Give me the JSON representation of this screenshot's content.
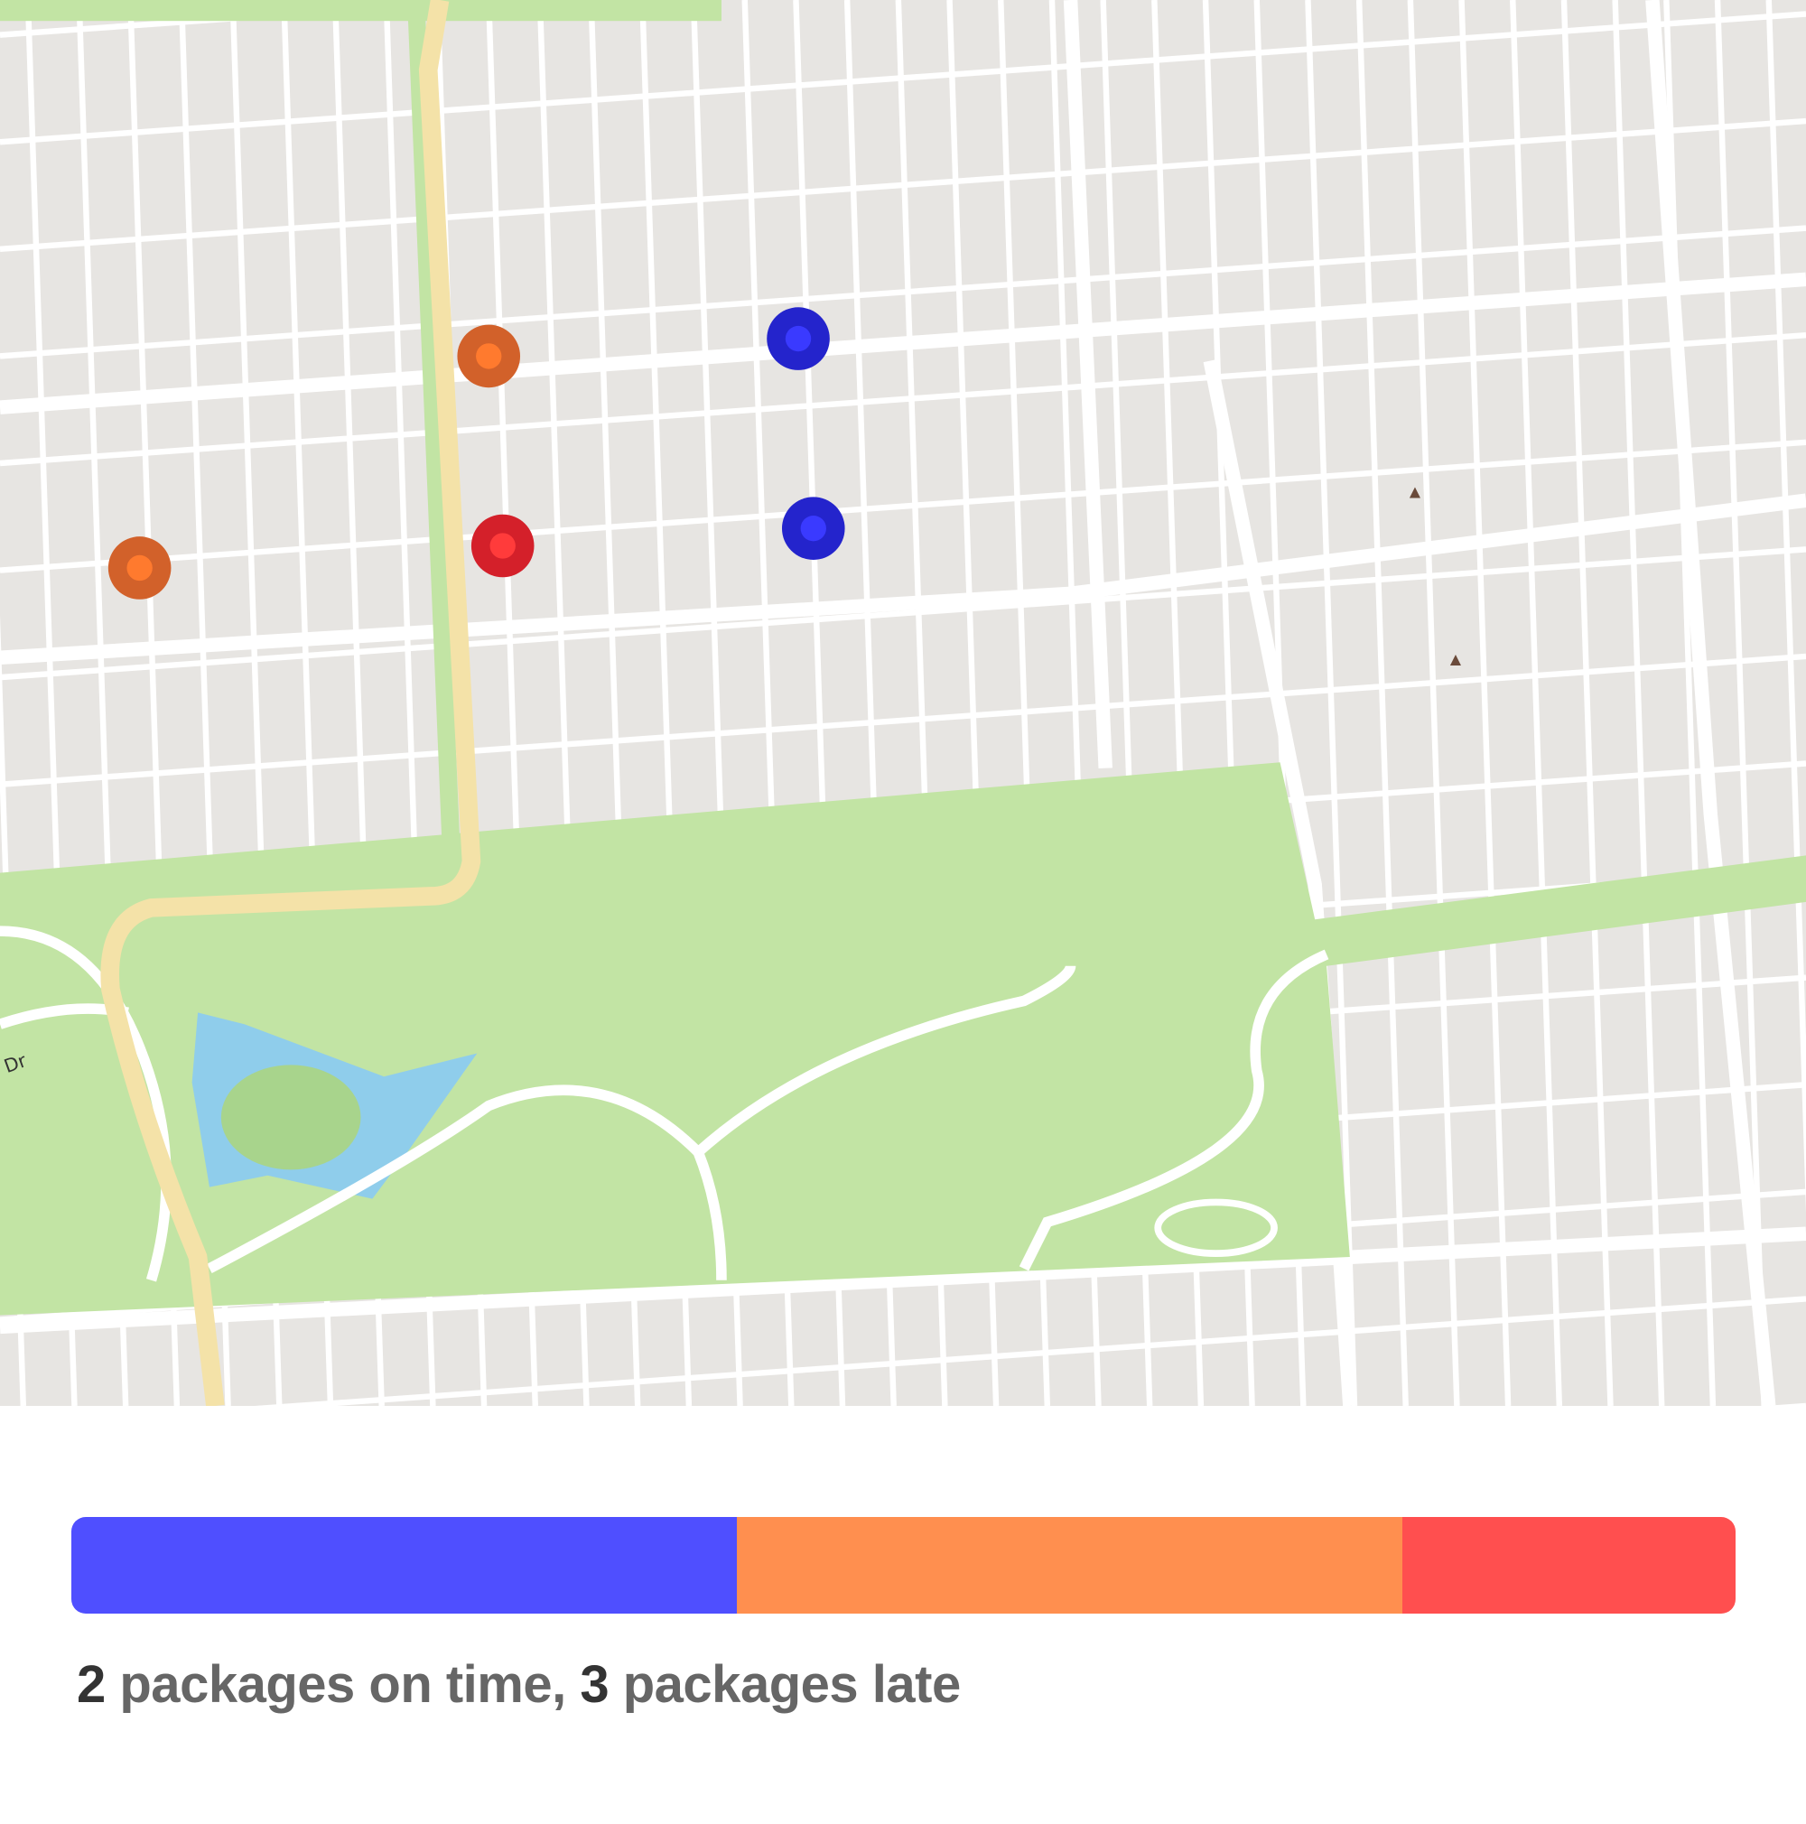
{
  "map": {
    "street_label": "Dr",
    "markers": [
      {
        "status": "late",
        "color": "#d2612a",
        "inner": "#ff7a2e"
      },
      {
        "status": "late",
        "color": "#d2612a",
        "inner": "#ff7a2e"
      },
      {
        "status": "very-late",
        "color": "#d4202a",
        "inner": "#ff3b3b"
      },
      {
        "status": "on-time",
        "color": "#2424cc",
        "inner": "#3a3aff"
      },
      {
        "status": "on-time",
        "color": "#2424cc",
        "inner": "#3a3aff"
      }
    ]
  },
  "progress": {
    "segments": [
      {
        "name": "on-time",
        "fraction": 0.4,
        "color": "#4f4fff"
      },
      {
        "name": "late",
        "fraction": 0.4,
        "color": "#ff8f4f"
      },
      {
        "name": "very-late",
        "fraction": 0.2,
        "color": "#ff4f4f"
      }
    ]
  },
  "summary": {
    "on_time_count": "2",
    "on_time_text": " packages on time, ",
    "late_count": "3",
    "late_text": " packages late"
  }
}
